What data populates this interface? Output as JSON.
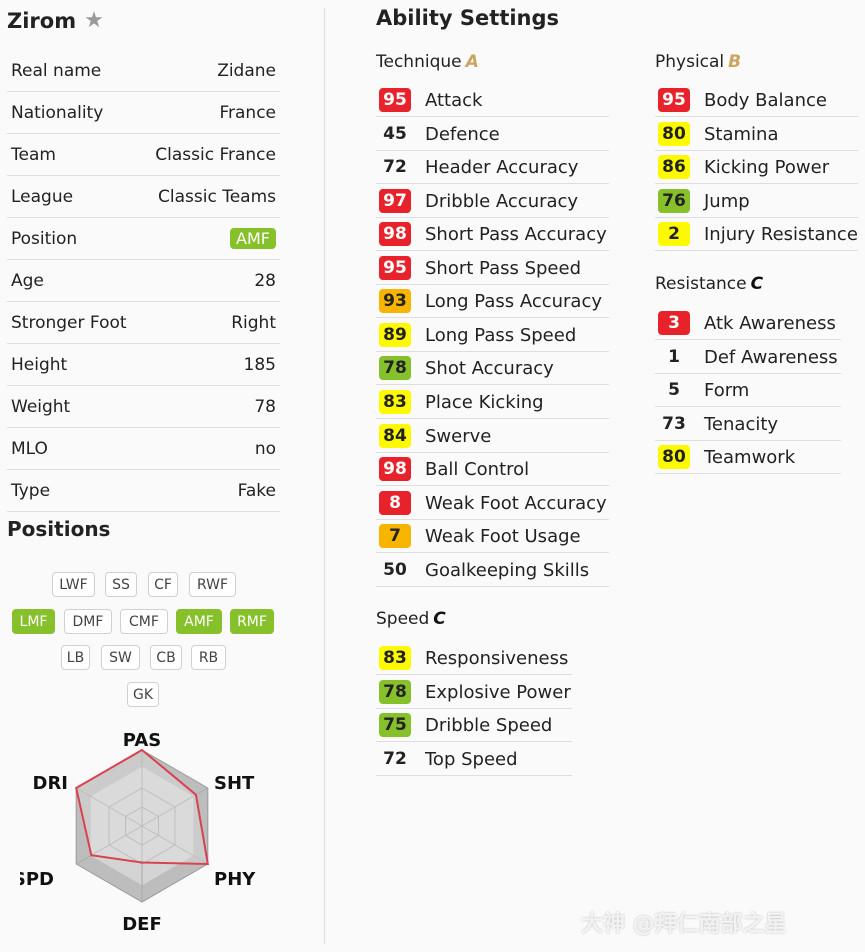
{
  "player": {
    "name": "Zirom",
    "favorite_icon": "star-icon"
  },
  "info": [
    {
      "label": "Real name",
      "value": "Zidane"
    },
    {
      "label": "Nationality",
      "value": "France"
    },
    {
      "label": "Team",
      "value": "Classic France"
    },
    {
      "label": "League",
      "value": "Classic Teams"
    },
    {
      "label": "Position",
      "value": "AMF",
      "highlight": true
    },
    {
      "label": "Age",
      "value": "28"
    },
    {
      "label": "Stronger Foot",
      "value": "Right"
    },
    {
      "label": "Height",
      "value": "185"
    },
    {
      "label": "Weight",
      "value": "78"
    },
    {
      "label": "MLO",
      "value": "no"
    },
    {
      "label": "Type",
      "value": "Fake"
    }
  ],
  "positions": {
    "title": "Positions",
    "chips": [
      {
        "label": "LWF",
        "on": false
      },
      {
        "label": "SS",
        "on": false
      },
      {
        "label": "CF",
        "on": false
      },
      {
        "label": "RWF",
        "on": false
      },
      {
        "label": "LMF",
        "on": true
      },
      {
        "label": "DMF",
        "on": false
      },
      {
        "label": "CMF",
        "on": false
      },
      {
        "label": "AMF",
        "on": true
      },
      {
        "label": "RMF",
        "on": true
      },
      {
        "label": "LB",
        "on": false
      },
      {
        "label": "SW",
        "on": false
      },
      {
        "label": "CB",
        "on": false
      },
      {
        "label": "RB",
        "on": false
      },
      {
        "label": "GK",
        "on": false
      }
    ]
  },
  "radar": {
    "axes": [
      "PAS",
      "SHT",
      "PHY",
      "DEF",
      "SPD",
      "DRI"
    ],
    "values": [
      1.0,
      0.82,
      1.0,
      0.48,
      0.77,
      1.0
    ]
  },
  "abilities": {
    "title": "Ability Settings",
    "groups": [
      {
        "name": "Technique",
        "grade": "A",
        "stats": [
          {
            "value": "95",
            "label": "Attack"
          },
          {
            "value": "45",
            "label": "Defence"
          },
          {
            "value": "72",
            "label": "Header Accuracy"
          },
          {
            "value": "97",
            "label": "Dribble Accuracy"
          },
          {
            "value": "98",
            "label": "Short Pass Accuracy"
          },
          {
            "value": "95",
            "label": "Short Pass Speed"
          },
          {
            "value": "93",
            "label": "Long Pass Accuracy"
          },
          {
            "value": "89",
            "label": "Long Pass Speed"
          },
          {
            "value": "78",
            "label": "Shot Accuracy"
          },
          {
            "value": "83",
            "label": "Place Kicking"
          },
          {
            "value": "84",
            "label": "Swerve"
          },
          {
            "value": "98",
            "label": "Ball Control"
          },
          {
            "value": "8",
            "label": "Weak Foot Accuracy"
          },
          {
            "value": "7",
            "label": "Weak Foot Usage"
          },
          {
            "value": "50",
            "label": "Goalkeeping Skills"
          }
        ]
      },
      {
        "name": "Speed",
        "grade": "C",
        "stats": [
          {
            "value": "83",
            "label": "Responsiveness"
          },
          {
            "value": "78",
            "label": "Explosive Power"
          },
          {
            "value": "75",
            "label": "Dribble Speed"
          },
          {
            "value": "72",
            "label": "Top Speed"
          }
        ]
      },
      {
        "name": "Physical",
        "grade": "B",
        "stats": [
          {
            "value": "95",
            "label": "Body Balance"
          },
          {
            "value": "80",
            "label": "Stamina"
          },
          {
            "value": "86",
            "label": "Kicking Power"
          },
          {
            "value": "76",
            "label": "Jump"
          },
          {
            "value": "2",
            "label": "Injury Resistance"
          }
        ]
      },
      {
        "name": "Resistance",
        "grade": "C",
        "stats": [
          {
            "value": "3",
            "label": "Atk Awareness"
          },
          {
            "value": "1",
            "label": "Def Awareness"
          },
          {
            "value": "5",
            "label": "Form"
          },
          {
            "value": "73",
            "label": "Tenacity"
          },
          {
            "value": "80",
            "label": "Teamwork"
          }
        ]
      }
    ]
  },
  "badge_colors": {
    "red": "#e8222a",
    "orange": "#f7b500",
    "yellow": "#fdfa00",
    "green": "#86c12c",
    "none": "transparent"
  },
  "watermark": "大神 @拜仁南部之星"
}
